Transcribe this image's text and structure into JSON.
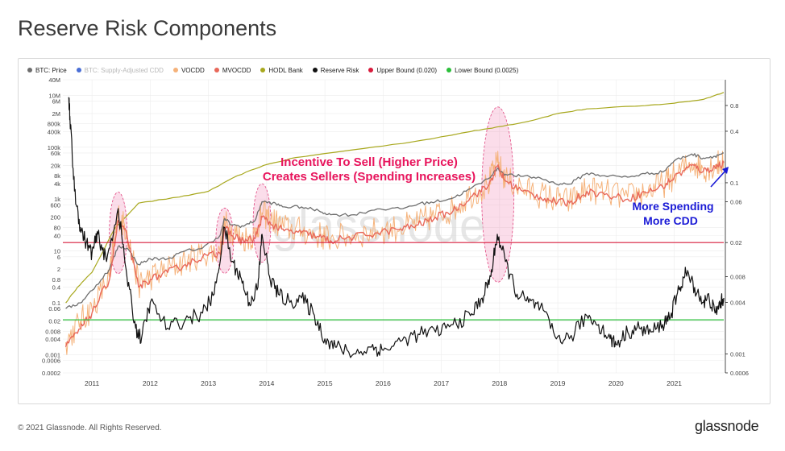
{
  "page": {
    "title": "Reserve Risk Components"
  },
  "legend": [
    {
      "label": "BTC: Price",
      "color": "#6e6e6e",
      "dim": false
    },
    {
      "label": "BTC: Supply-Adjusted CDD",
      "color": "#4a6fd6",
      "dim": true
    },
    {
      "label": "VOCDD",
      "color": "#f5b27a",
      "dim": false
    },
    {
      "label": "MVOCDD",
      "color": "#e8685a",
      "dim": false
    },
    {
      "label": "HODL Bank",
      "color": "#a8a81e",
      "dim": false
    },
    {
      "label": "Reserve Risk",
      "color": "#111111",
      "dim": false
    },
    {
      "label": "Upper Bound (0.020)",
      "color": "#d81b3c",
      "dim": false
    },
    {
      "label": "Lower Bound (0.0025)",
      "color": "#2bbf3a",
      "dim": false
    }
  ],
  "annotations": {
    "incentive_line1": "Incentive To Sell (Higher Price)",
    "incentive_line2": "Creates Sellers (Spending Increases)",
    "spending_line1": "More Spending",
    "spending_line2": "More CDD",
    "incentive_color": "#e8145c",
    "spending_color": "#1a1ad6"
  },
  "watermark": "glassnode",
  "footer": {
    "copyright": "© 2021 Glassnode. All Rights Reserved.",
    "logo": "glassnode"
  },
  "chart_data": {
    "type": "line",
    "title": "Reserve Risk Components",
    "x_ticks": [
      "2011",
      "2012",
      "2013",
      "2014",
      "2015",
      "2016",
      "2017",
      "2018",
      "2019",
      "2020",
      "2021"
    ],
    "x_range": [
      2010.5,
      2021.85
    ],
    "y_left": {
      "scale": "log",
      "range": [
        0.0002,
        40000000
      ],
      "tick_values": [
        40000000,
        10000000,
        6000000,
        2000000,
        800000,
        400000,
        100000,
        60000,
        20000,
        8000,
        4000,
        1000,
        600,
        200,
        80,
        40,
        10,
        6,
        2,
        0.8,
        0.4,
        0.1,
        0.06,
        0.02,
        0.008,
        0.004,
        0.001,
        0.0006,
        0.0002
      ],
      "tick_labels": [
        "40M",
        "10M",
        "6M",
        "2M",
        "800k",
        "400k",
        "100k",
        "60k",
        "20k",
        "8k",
        "4k",
        "1k",
        "600",
        "200",
        "80",
        "40",
        "10",
        "6",
        "2",
        "0.8",
        "0.4",
        "0.1",
        "0.06",
        "0.02",
        "0.008",
        "0.004",
        "0.001",
        "0.0006",
        "0.0002"
      ]
    },
    "y_right": {
      "scale": "log",
      "range": [
        0.0006,
        1.6
      ],
      "tick_values": [
        0.8,
        0.4,
        0.1,
        0.06,
        0.02,
        0.008,
        0.004,
        0.001,
        0.0006
      ],
      "tick_labels": [
        "0.8",
        "0.4",
        "0.1",
        "0.06",
        "0.02",
        "0.008",
        "0.004",
        "0.001",
        "0.0006"
      ]
    },
    "grid": true,
    "legend_position": "top-left",
    "series": [
      {
        "name": "BTC: Price",
        "axis": "left",
        "color": "#6e6e6e",
        "x": [
          2010.55,
          2010.8,
          2011.0,
          2011.3,
          2011.45,
          2011.6,
          2011.8,
          2012.0,
          2012.3,
          2012.6,
          2012.9,
          2013.2,
          2013.28,
          2013.4,
          2013.6,
          2013.8,
          2013.92,
          2014.1,
          2014.3,
          2014.6,
          2014.9,
          2015.1,
          2015.5,
          2015.9,
          2016.3,
          2016.6,
          2016.9,
          2017.2,
          2017.5,
          2017.8,
          2017.96,
          2018.1,
          2018.4,
          2018.7,
          2018.95,
          2019.2,
          2019.5,
          2019.8,
          2020.2,
          2020.5,
          2020.8,
          2021.0,
          2021.3,
          2021.5,
          2021.7,
          2021.85
        ],
        "y": [
          0.06,
          0.1,
          0.3,
          2,
          15,
          13,
          3,
          5,
          5,
          10,
          13,
          40,
          180,
          100,
          90,
          150,
          800,
          700,
          500,
          500,
          350,
          250,
          250,
          420,
          420,
          650,
          800,
          1100,
          2500,
          6000,
          15000,
          9000,
          7500,
          6500,
          4000,
          3800,
          10000,
          8000,
          7000,
          9500,
          11000,
          30000,
          55000,
          38000,
          45000,
          60000
        ]
      },
      {
        "name": "VOCDD",
        "axis": "left",
        "color": "#f5b27a",
        "x": [
          2010.55,
          2010.8,
          2011.0,
          2011.3,
          2011.45,
          2011.6,
          2011.8,
          2012.0,
          2012.3,
          2012.6,
          2012.9,
          2013.2,
          2013.28,
          2013.4,
          2013.6,
          2013.8,
          2013.92,
          2014.1,
          2014.3,
          2014.6,
          2014.9,
          2015.1,
          2015.5,
          2015.9,
          2016.3,
          2016.6,
          2016.9,
          2017.2,
          2017.5,
          2017.8,
          2017.96,
          2018.1,
          2018.4,
          2018.7,
          2018.95,
          2019.2,
          2019.5,
          2019.8,
          2020.2,
          2020.5,
          2020.8,
          2021.0,
          2021.3,
          2021.5,
          2021.7,
          2021.85
        ],
        "y": [
          0.003,
          0.02,
          0.06,
          1,
          250,
          60,
          0.5,
          1,
          2,
          4,
          8,
          10,
          120,
          60,
          30,
          40,
          300,
          150,
          80,
          60,
          40,
          30,
          40,
          60,
          80,
          120,
          250,
          400,
          1500,
          3500,
          25000,
          6000,
          2500,
          1500,
          1000,
          800,
          2500,
          1800,
          1200,
          2000,
          3500,
          8000,
          25000,
          15000,
          20000,
          30000
        ]
      },
      {
        "name": "MVOCDD",
        "axis": "left",
        "color": "#e8685a",
        "x": [
          2010.55,
          2010.8,
          2011.0,
          2011.3,
          2011.45,
          2011.6,
          2011.8,
          2012.0,
          2012.3,
          2012.6,
          2012.9,
          2013.2,
          2013.28,
          2013.4,
          2013.6,
          2013.8,
          2013.92,
          2014.1,
          2014.3,
          2014.6,
          2014.9,
          2015.1,
          2015.5,
          2015.9,
          2016.3,
          2016.6,
          2016.9,
          2017.2,
          2017.5,
          2017.8,
          2017.96,
          2018.1,
          2018.4,
          2018.7,
          2018.95,
          2019.2,
          2019.5,
          2019.8,
          2020.2,
          2020.5,
          2020.8,
          2021.0,
          2021.3,
          2021.5,
          2021.7,
          2021.85
        ],
        "y": [
          0.002,
          0.01,
          0.04,
          0.8,
          150,
          40,
          0.4,
          0.8,
          1.5,
          3,
          6,
          8,
          80,
          40,
          25,
          30,
          200,
          100,
          60,
          50,
          35,
          25,
          35,
          50,
          70,
          100,
          200,
          350,
          1200,
          3000,
          18000,
          5000,
          2000,
          1200,
          800,
          700,
          2000,
          1500,
          1000,
          1800,
          3000,
          7000,
          20000,
          12000,
          17000,
          25000
        ]
      },
      {
        "name": "HODL Bank",
        "axis": "left",
        "color": "#a8a81e",
        "x": [
          2010.55,
          2010.75,
          2011.0,
          2011.4,
          2011.8,
          2012.5,
          2013.0,
          2013.5,
          2013.95,
          2014.5,
          2015.5,
          2016.5,
          2017.5,
          2017.95,
          2018.5,
          2019.0,
          2019.5,
          2020.5,
          2021.0,
          2021.5,
          2021.85
        ],
        "y": [
          0.1,
          0.4,
          1.5,
          80,
          700,
          1200,
          2000,
          8000,
          20000,
          40000,
          80000,
          160000,
          400000,
          600000,
          1000000,
          2000000,
          3000000,
          4000000,
          5000000,
          7000000,
          13000000
        ]
      },
      {
        "name": "Reserve Risk",
        "axis": "right",
        "color": "#111111",
        "x": [
          2010.6,
          2010.62,
          2010.7,
          2010.8,
          2010.9,
          2011.0,
          2011.1,
          2011.25,
          2011.45,
          2011.6,
          2011.75,
          2011.85,
          2012.0,
          2012.3,
          2012.6,
          2012.9,
          2013.1,
          2013.28,
          2013.4,
          2013.55,
          2013.7,
          2013.85,
          2013.92,
          2014.05,
          2014.2,
          2014.4,
          2014.6,
          2014.8,
          2015.0,
          2015.2,
          2015.5,
          2015.8,
          2016.0,
          2016.3,
          2016.6,
          2016.9,
          2017.2,
          2017.5,
          2017.7,
          2017.85,
          2017.96,
          2018.1,
          2018.3,
          2018.5,
          2018.7,
          2018.95,
          2019.2,
          2019.5,
          2019.7,
          2019.9,
          2020.0,
          2020.2,
          2020.4,
          2020.6,
          2020.8,
          2020.95,
          2021.1,
          2021.2,
          2021.35,
          2021.5,
          2021.6,
          2021.7,
          2021.8,
          2021.85
        ],
        "y": [
          1.0,
          0.6,
          0.08,
          0.03,
          0.02,
          0.015,
          0.025,
          0.012,
          0.05,
          0.008,
          0.002,
          0.0015,
          0.004,
          0.002,
          0.0025,
          0.003,
          0.005,
          0.03,
          0.012,
          0.008,
          0.004,
          0.006,
          0.025,
          0.008,
          0.005,
          0.004,
          0.0045,
          0.003,
          0.0015,
          0.0012,
          0.001,
          0.0012,
          0.0011,
          0.0014,
          0.0017,
          0.0018,
          0.0022,
          0.0028,
          0.0045,
          0.008,
          0.025,
          0.012,
          0.005,
          0.004,
          0.0035,
          0.0016,
          0.0015,
          0.0028,
          0.0022,
          0.0015,
          0.0013,
          0.0018,
          0.002,
          0.0018,
          0.0022,
          0.003,
          0.006,
          0.009,
          0.006,
          0.004,
          0.0045,
          0.003,
          0.004,
          0.0045
        ]
      },
      {
        "name": "Upper Bound (0.020)",
        "axis": "right",
        "color": "#d81b3c",
        "x": [
          2010.5,
          2021.85
        ],
        "y": [
          0.02,
          0.02
        ]
      },
      {
        "name": "Lower Bound (0.0025)",
        "axis": "right",
        "color": "#2bbf3a",
        "x": [
          2010.5,
          2021.85
        ],
        "y": [
          0.0025,
          0.0025
        ]
      }
    ]
  }
}
